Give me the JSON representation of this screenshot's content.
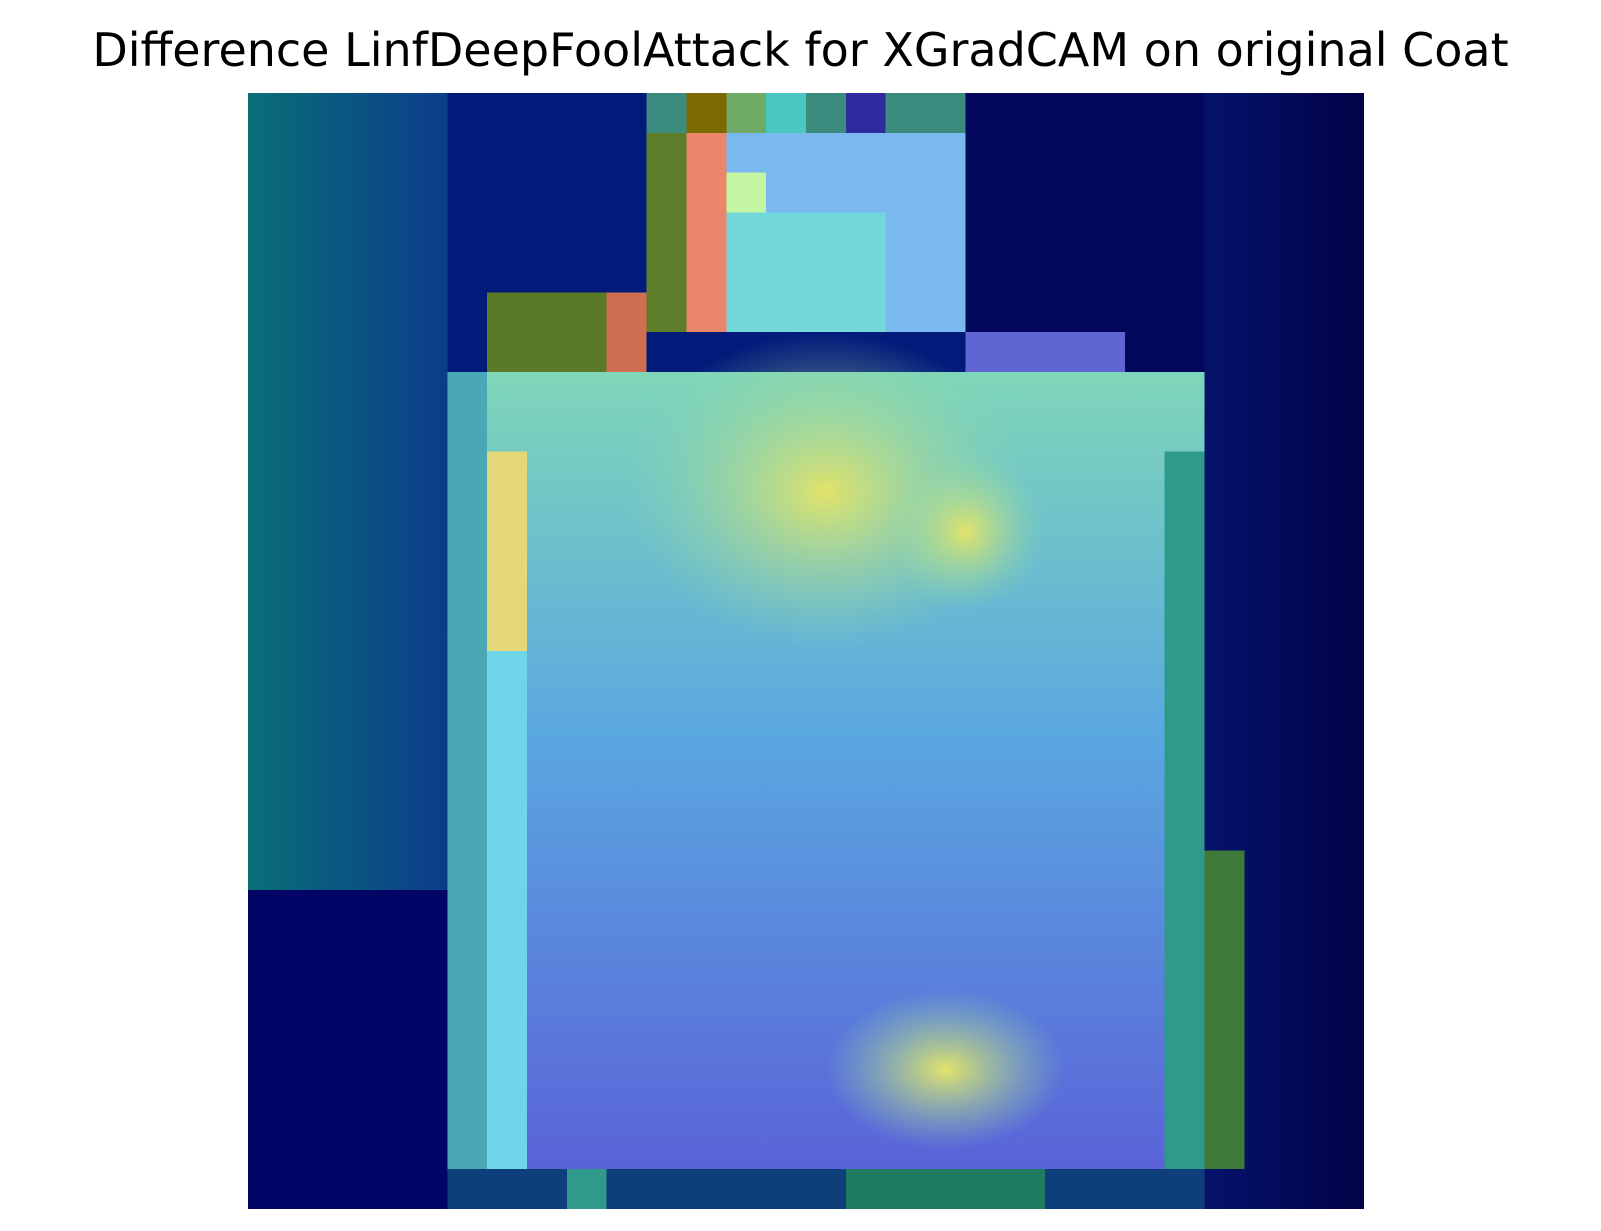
{
  "figure": {
    "title": "Difference LinfDeepFoolAttack for XGradCAM on original Coat"
  },
  "image": {
    "description_type": "grad-cam heatmap overlay",
    "grid": [
      28,
      28
    ]
  }
}
